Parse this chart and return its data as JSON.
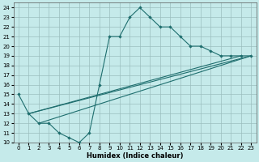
{
  "xlabel": "Humidex (Indice chaleur)",
  "bg_color": "#c5eaea",
  "grid_color": "#9bbebe",
  "line_color": "#1e6e6e",
  "xlim": [
    -0.5,
    23.5
  ],
  "ylim": [
    10,
    24.5
  ],
  "xticks": [
    0,
    1,
    2,
    3,
    4,
    5,
    6,
    7,
    8,
    9,
    10,
    11,
    12,
    13,
    14,
    15,
    16,
    17,
    18,
    19,
    20,
    21,
    22,
    23
  ],
  "yticks": [
    10,
    11,
    12,
    13,
    14,
    15,
    16,
    17,
    18,
    19,
    20,
    21,
    22,
    23,
    24
  ],
  "curve_x": [
    0,
    1,
    2,
    3,
    4,
    5,
    6,
    7,
    8,
    9,
    10,
    11,
    12,
    13,
    14,
    15,
    16,
    17,
    18,
    19,
    20,
    21,
    22,
    23
  ],
  "curve_y": [
    15,
    13,
    12,
    12,
    11,
    10.5,
    10,
    11,
    16,
    21,
    21,
    23,
    24,
    23,
    22,
    22,
    21,
    20,
    20,
    19.5,
    19,
    19,
    19,
    19
  ],
  "straight_lines": [
    {
      "x": [
        1,
        22
      ],
      "y": [
        13,
        19
      ]
    },
    {
      "x": [
        1,
        23
      ],
      "y": [
        13,
        19
      ]
    },
    {
      "x": [
        2,
        23
      ],
      "y": [
        12,
        19
      ]
    }
  ],
  "tick_fontsize": 5,
  "xlabel_fontsize": 6,
  "lw": 0.8,
  "ms": 2.2
}
